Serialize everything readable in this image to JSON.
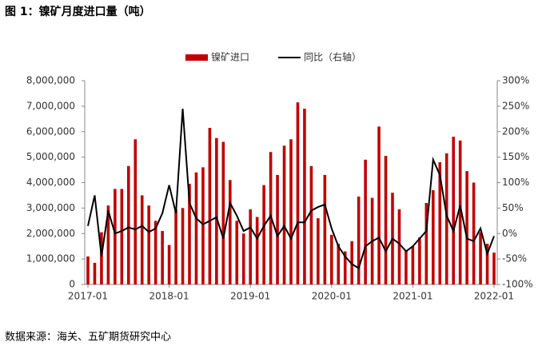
{
  "chart_data": {
    "type": "bar_line",
    "title": "图 1：镍矿月度进口量（吨）",
    "source": "数据来源：海关、五矿期货研究中心",
    "categories": [
      "2017-01",
      null,
      null,
      null,
      null,
      null,
      null,
      null,
      null,
      null,
      null,
      null,
      "2018-01",
      null,
      null,
      null,
      null,
      null,
      null,
      null,
      null,
      null,
      null,
      null,
      "2019-01",
      null,
      null,
      null,
      null,
      null,
      null,
      null,
      null,
      null,
      null,
      null,
      "2020-01",
      null,
      null,
      null,
      null,
      null,
      null,
      null,
      null,
      null,
      null,
      null,
      "2021-01",
      null,
      null,
      null,
      null,
      null,
      null,
      null,
      null,
      null,
      null,
      null,
      "2022-01"
    ],
    "series": [
      {
        "name": "镍矿进口",
        "color": "#c00000",
        "axis": "y",
        "values": [
          1100000,
          850000,
          2050000,
          3100000,
          3750000,
          3750000,
          4650000,
          5700000,
          3500000,
          3100000,
          2500000,
          2100000,
          1550000,
          2950000,
          3000000,
          3950000,
          4400000,
          4600000,
          6150000,
          5750000,
          5600000,
          4100000,
          2500000,
          2000000,
          2950000,
          2650000,
          3900000,
          5200000,
          4300000,
          5450000,
          5700000,
          7150000,
          6900000,
          4650000,
          2600000,
          4300000,
          1950000,
          1600000,
          1300000,
          1700000,
          3450000,
          4900000,
          3400000,
          6200000,
          5050000,
          3600000,
          2950000,
          1350000,
          1500000,
          1850000,
          3200000,
          3700000,
          4800000,
          5150000,
          5800000,
          5650000,
          4450000,
          4000000,
          2050000,
          1600000,
          1250000
        ]
      },
      {
        "name": "同比（右轴）",
        "color": "#000000",
        "axis": "y2",
        "values": [
          15,
          75,
          -45,
          45,
          0,
          5,
          12,
          8,
          15,
          3,
          10,
          40,
          95,
          40,
          245,
          60,
          30,
          18,
          25,
          32,
          -10,
          60,
          35,
          5,
          12,
          -10,
          15,
          35,
          -5,
          15,
          -10,
          22,
          22,
          45,
          52,
          57,
          10,
          -25,
          -45,
          -60,
          -68,
          -25,
          -15,
          -8,
          -35,
          -10,
          -20,
          -35,
          -25,
          -10,
          5,
          145,
          115,
          35,
          5,
          55,
          -10,
          -15,
          10,
          -40,
          -5
        ]
      }
    ],
    "ylim": [
      0,
      8000000
    ],
    "yticks": [
      0,
      {
        "value": 1000000,
        "label": "1,000,000"
      },
      {
        "value": 2000000,
        "label": "2,000,000"
      },
      {
        "value": 3000000,
        "label": "3,000,000"
      },
      {
        "value": 4000000,
        "label": "4,000,000"
      },
      {
        "value": 5000000,
        "label": "5,000,000"
      },
      {
        "value": 6000000,
        "label": "6,000,000"
      },
      {
        "value": 7000000,
        "label": "7,000,000"
      },
      {
        "value": 8000000,
        "label": "8,000,000"
      }
    ],
    "y2lim": [
      -100,
      300
    ],
    "y2ticks": [
      {
        "value": -100,
        "label": "-100%"
      },
      {
        "value": -50,
        "label": "-50%"
      },
      {
        "value": 0,
        "label": "0%"
      },
      {
        "value": 50,
        "label": "50%"
      },
      {
        "value": 100,
        "label": "100%"
      },
      {
        "value": 150,
        "label": "150%"
      },
      {
        "value": 200,
        "label": "200%"
      },
      {
        "value": 250,
        "label": "250%"
      },
      {
        "value": 300,
        "label": "300%"
      }
    ],
    "legend": "top"
  }
}
